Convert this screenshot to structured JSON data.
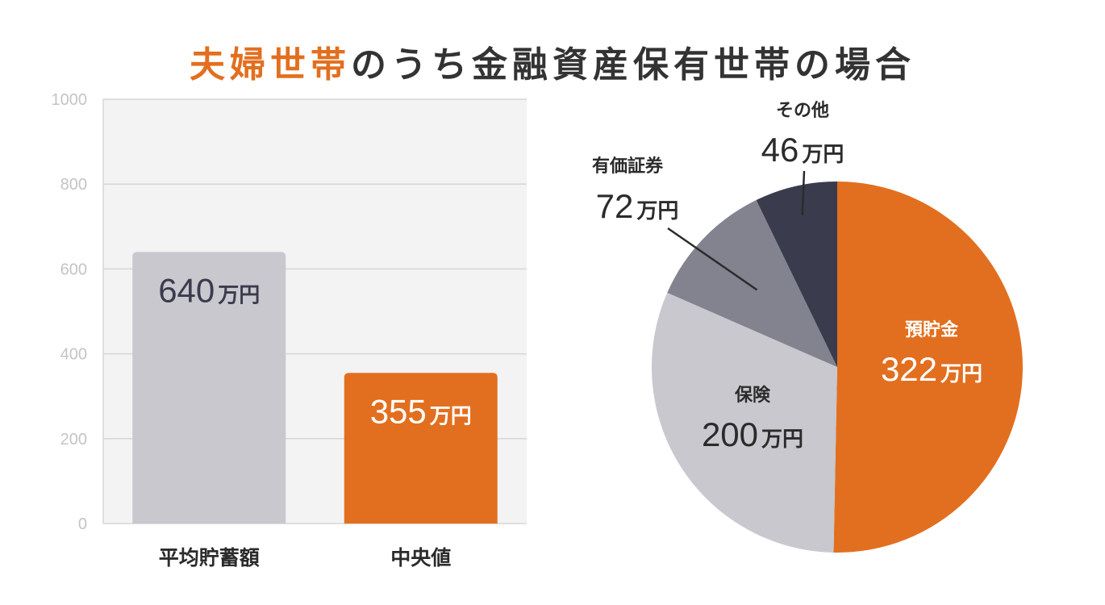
{
  "title": {
    "highlight": "夫婦世帯",
    "rest": "のうち金融資産保有世帯の場合"
  },
  "colors": {
    "accent": "#e26f1f",
    "gray_bar": "#c8c8ce",
    "plot_bg": "#f3f3f3",
    "grid": "#d6d6d6",
    "light_gray": "#c8c8ce",
    "mid_gray": "#82838e",
    "dark": "#3b3b4e",
    "text_dark": "#2b2b2b",
    "label_dark": "#3b3b4e"
  },
  "chart_data": [
    {
      "type": "bar",
      "categories": [
        "平均貯蓄額",
        "中央値"
      ],
      "values": [
        640,
        355
      ],
      "value_labels": [
        "640",
        "355"
      ],
      "unit": "万円",
      "ylim": [
        0,
        1000
      ],
      "yticks": [
        0,
        200,
        400,
        600,
        800,
        1000
      ],
      "bar_colors": [
        "gray_bar",
        "accent"
      ],
      "label_colors": [
        "label_dark",
        "white"
      ],
      "grid": true
    },
    {
      "type": "pie",
      "unit": "万円",
      "slices": [
        {
          "label": "預貯金",
          "value": 322,
          "color": "accent"
        },
        {
          "label": "保険",
          "value": 200,
          "color": "light_gray"
        },
        {
          "label": "有価証券",
          "value": 72,
          "color": "mid_gray"
        },
        {
          "label": "その他",
          "value": 46,
          "color": "dark"
        }
      ]
    }
  ]
}
